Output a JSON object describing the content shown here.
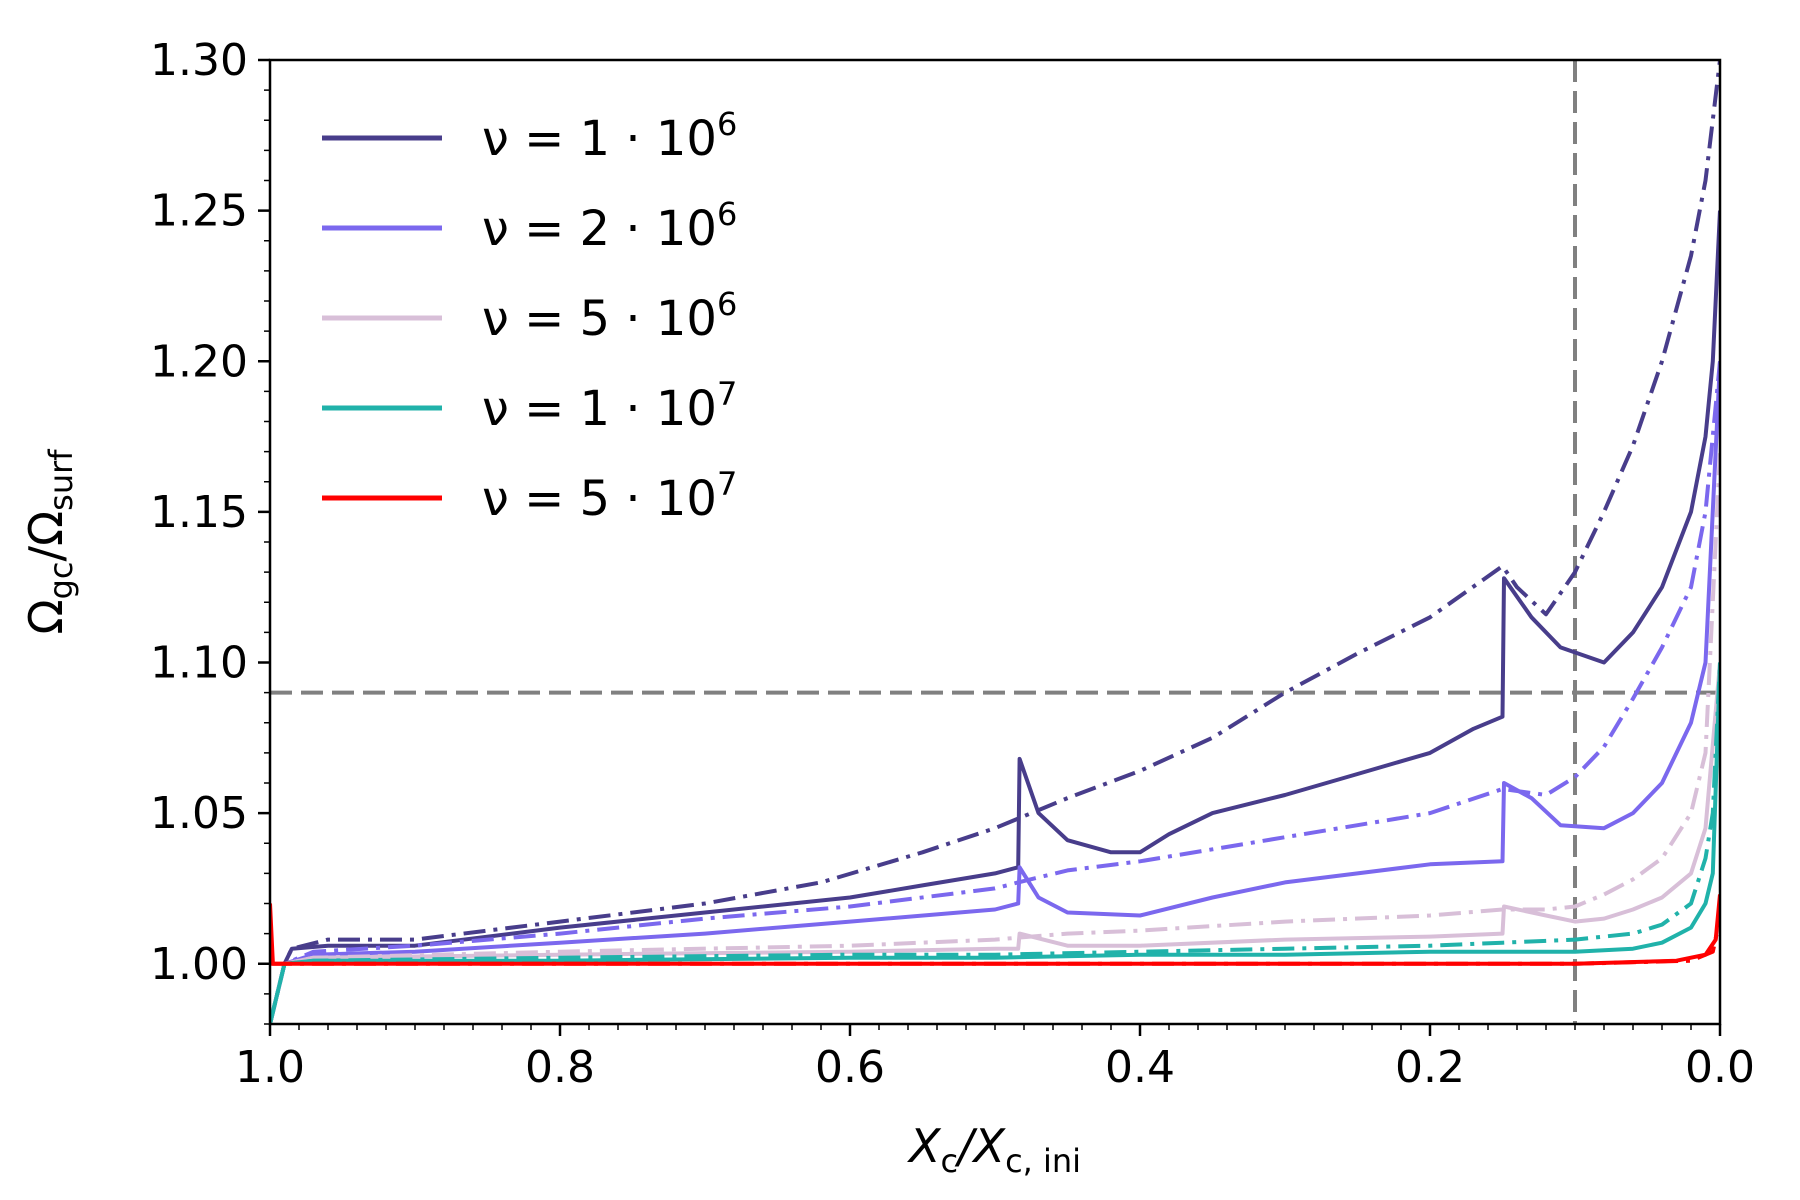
{
  "chart_data": {
    "type": "line",
    "xlabel": {
      "main": "X",
      "sub1": "c",
      "sep": "/X",
      "sub2": "c, ini"
    },
    "ylabel": {
      "main": "Ω",
      "sub1": "gc",
      "sep": "/Ω",
      "sub2": "surf"
    },
    "xlim": [
      1.0,
      0.0
    ],
    "ylim": [
      0.98,
      1.3
    ],
    "xticks": [
      1.0,
      0.8,
      0.6,
      0.4,
      0.2,
      0.0
    ],
    "xtick_labels": [
      "1.0",
      "0.8",
      "0.6",
      "0.4",
      "0.2",
      "0.0"
    ],
    "yticks": [
      1.0,
      1.05,
      1.1,
      1.15,
      1.2,
      1.25,
      1.3
    ],
    "ytick_labels": [
      "1.00",
      "1.05",
      "1.10",
      "1.15",
      "1.20",
      "1.25",
      "1.30"
    ],
    "reference_lines": {
      "horizontal_y": 1.09,
      "vertical_x": 0.1,
      "color": "#808080"
    },
    "legend_position": "upper-left",
    "series": [
      {
        "name": "ν = 1·10^6",
        "label_main": "ν = 1 · 10",
        "label_exp": "6",
        "color": "#483d8b",
        "solid": [
          [
            1.0,
            0.98
          ],
          [
            0.99,
            1.0
          ],
          [
            0.985,
            1.005
          ],
          [
            0.96,
            1.006
          ],
          [
            0.9,
            1.006
          ],
          [
            0.8,
            1.012
          ],
          [
            0.7,
            1.017
          ],
          [
            0.6,
            1.022
          ],
          [
            0.55,
            1.026
          ],
          [
            0.5,
            1.03
          ],
          [
            0.484,
            1.032
          ],
          [
            0.483,
            1.068
          ],
          [
            0.47,
            1.05
          ],
          [
            0.45,
            1.041
          ],
          [
            0.42,
            1.037
          ],
          [
            0.4,
            1.037
          ],
          [
            0.38,
            1.043
          ],
          [
            0.35,
            1.05
          ],
          [
            0.3,
            1.056
          ],
          [
            0.25,
            1.063
          ],
          [
            0.2,
            1.07
          ],
          [
            0.17,
            1.078
          ],
          [
            0.15,
            1.082
          ],
          [
            0.149,
            1.128
          ],
          [
            0.13,
            1.115
          ],
          [
            0.11,
            1.105
          ],
          [
            0.08,
            1.1
          ],
          [
            0.06,
            1.11
          ],
          [
            0.04,
            1.125
          ],
          [
            0.02,
            1.15
          ],
          [
            0.01,
            1.175
          ],
          [
            0.005,
            1.2
          ],
          [
            0.0,
            1.25
          ]
        ],
        "dashdot": [
          [
            1.0,
            0.98
          ],
          [
            0.99,
            1.0
          ],
          [
            0.985,
            1.005
          ],
          [
            0.96,
            1.008
          ],
          [
            0.9,
            1.008
          ],
          [
            0.8,
            1.014
          ],
          [
            0.7,
            1.02
          ],
          [
            0.62,
            1.027
          ],
          [
            0.55,
            1.037
          ],
          [
            0.5,
            1.045
          ],
          [
            0.45,
            1.055
          ],
          [
            0.4,
            1.064
          ],
          [
            0.35,
            1.075
          ],
          [
            0.3,
            1.09
          ],
          [
            0.25,
            1.103
          ],
          [
            0.2,
            1.115
          ],
          [
            0.15,
            1.132
          ],
          [
            0.14,
            1.125
          ],
          [
            0.12,
            1.116
          ],
          [
            0.1,
            1.13
          ],
          [
            0.08,
            1.15
          ],
          [
            0.06,
            1.172
          ],
          [
            0.04,
            1.2
          ],
          [
            0.02,
            1.235
          ],
          [
            0.01,
            1.26
          ],
          [
            0.0,
            1.3
          ]
        ]
      },
      {
        "name": "ν = 2·10^6",
        "label_main": "ν = 2 · 10",
        "label_exp": "6",
        "color": "#7b68ee",
        "solid": [
          [
            1.0,
            0.98
          ],
          [
            0.99,
            1.0
          ],
          [
            0.97,
            1.003
          ],
          [
            0.9,
            1.004
          ],
          [
            0.8,
            1.007
          ],
          [
            0.7,
            1.01
          ],
          [
            0.6,
            1.014
          ],
          [
            0.5,
            1.018
          ],
          [
            0.484,
            1.02
          ],
          [
            0.483,
            1.032
          ],
          [
            0.47,
            1.022
          ],
          [
            0.45,
            1.017
          ],
          [
            0.4,
            1.016
          ],
          [
            0.35,
            1.022
          ],
          [
            0.3,
            1.027
          ],
          [
            0.25,
            1.03
          ],
          [
            0.2,
            1.033
          ],
          [
            0.15,
            1.034
          ],
          [
            0.149,
            1.06
          ],
          [
            0.13,
            1.055
          ],
          [
            0.11,
            1.046
          ],
          [
            0.08,
            1.045
          ],
          [
            0.06,
            1.05
          ],
          [
            0.04,
            1.06
          ],
          [
            0.02,
            1.08
          ],
          [
            0.01,
            1.1
          ],
          [
            0.0,
            1.2
          ]
        ],
        "dashdot": [
          [
            1.0,
            0.98
          ],
          [
            0.99,
            1.0
          ],
          [
            0.97,
            1.004
          ],
          [
            0.9,
            1.006
          ],
          [
            0.8,
            1.01
          ],
          [
            0.7,
            1.015
          ],
          [
            0.6,
            1.019
          ],
          [
            0.5,
            1.025
          ],
          [
            0.484,
            1.027
          ],
          [
            0.45,
            1.031
          ],
          [
            0.4,
            1.034
          ],
          [
            0.35,
            1.038
          ],
          [
            0.3,
            1.042
          ],
          [
            0.25,
            1.046
          ],
          [
            0.2,
            1.05
          ],
          [
            0.15,
            1.058
          ],
          [
            0.12,
            1.056
          ],
          [
            0.1,
            1.062
          ],
          [
            0.08,
            1.072
          ],
          [
            0.06,
            1.088
          ],
          [
            0.04,
            1.105
          ],
          [
            0.02,
            1.125
          ],
          [
            0.01,
            1.15
          ],
          [
            0.0,
            1.2
          ]
        ]
      },
      {
        "name": "ν = 5·10^6",
        "label_main": "ν = 5 · 10",
        "label_exp": "6",
        "color": "#d8bfd8",
        "solid": [
          [
            1.0,
            0.98
          ],
          [
            0.99,
            1.0
          ],
          [
            0.97,
            1.002
          ],
          [
            0.8,
            1.003
          ],
          [
            0.6,
            1.004
          ],
          [
            0.5,
            1.005
          ],
          [
            0.484,
            1.005
          ],
          [
            0.483,
            1.01
          ],
          [
            0.45,
            1.006
          ],
          [
            0.4,
            1.006
          ],
          [
            0.3,
            1.008
          ],
          [
            0.2,
            1.009
          ],
          [
            0.15,
            1.01
          ],
          [
            0.149,
            1.019
          ],
          [
            0.12,
            1.016
          ],
          [
            0.1,
            1.014
          ],
          [
            0.08,
            1.015
          ],
          [
            0.06,
            1.018
          ],
          [
            0.04,
            1.022
          ],
          [
            0.02,
            1.03
          ],
          [
            0.01,
            1.045
          ],
          [
            0.0,
            1.1
          ]
        ],
        "dashdot": [
          [
            1.0,
            0.98
          ],
          [
            0.99,
            1.0
          ],
          [
            0.97,
            1.002
          ],
          [
            0.8,
            1.004
          ],
          [
            0.6,
            1.006
          ],
          [
            0.5,
            1.008
          ],
          [
            0.45,
            1.01
          ],
          [
            0.4,
            1.011
          ],
          [
            0.3,
            1.014
          ],
          [
            0.2,
            1.016
          ],
          [
            0.15,
            1.018
          ],
          [
            0.12,
            1.018
          ],
          [
            0.1,
            1.019
          ],
          [
            0.08,
            1.023
          ],
          [
            0.06,
            1.028
          ],
          [
            0.04,
            1.035
          ],
          [
            0.02,
            1.05
          ],
          [
            0.01,
            1.07
          ],
          [
            0.0,
            1.17
          ]
        ]
      },
      {
        "name": "ν = 1·10^7",
        "label_main": "ν = 1 · 10",
        "label_exp": "7",
        "color": "#20b2aa",
        "solid": [
          [
            1.0,
            0.98
          ],
          [
            0.99,
            1.0
          ],
          [
            0.97,
            1.001
          ],
          [
            0.8,
            1.001
          ],
          [
            0.6,
            1.002
          ],
          [
            0.5,
            1.002
          ],
          [
            0.4,
            1.003
          ],
          [
            0.3,
            1.003
          ],
          [
            0.2,
            1.004
          ],
          [
            0.15,
            1.004
          ],
          [
            0.1,
            1.004
          ],
          [
            0.06,
            1.005
          ],
          [
            0.04,
            1.007
          ],
          [
            0.02,
            1.012
          ],
          [
            0.01,
            1.02
          ],
          [
            0.005,
            1.03
          ],
          [
            0.0,
            1.1
          ]
        ],
        "dashdot": [
          [
            1.0,
            0.98
          ],
          [
            0.99,
            1.0
          ],
          [
            0.97,
            1.001
          ],
          [
            0.8,
            1.002
          ],
          [
            0.6,
            1.003
          ],
          [
            0.5,
            1.003
          ],
          [
            0.4,
            1.004
          ],
          [
            0.3,
            1.005
          ],
          [
            0.2,
            1.006
          ],
          [
            0.15,
            1.007
          ],
          [
            0.1,
            1.008
          ],
          [
            0.06,
            1.01
          ],
          [
            0.04,
            1.013
          ],
          [
            0.02,
            1.02
          ],
          [
            0.01,
            1.035
          ],
          [
            0.005,
            1.05
          ],
          [
            0.0,
            1.1
          ]
        ]
      },
      {
        "name": "ν = 5·10^7",
        "label_main": "ν = 5 · 10",
        "label_exp": "7",
        "color": "#ff0000",
        "solid": [
          [
            1.0,
            1.02
          ],
          [
            0.998,
            1.0
          ],
          [
            0.9,
            1.0
          ],
          [
            0.6,
            1.0
          ],
          [
            0.3,
            1.0
          ],
          [
            0.1,
            1.0
          ],
          [
            0.03,
            1.001
          ],
          [
            0.01,
            1.003
          ],
          [
            0.003,
            1.008
          ],
          [
            0.0,
            1.023
          ]
        ],
        "dashdot": [
          [
            1.0,
            1.0
          ],
          [
            0.5,
            1.0
          ],
          [
            0.1,
            1.0
          ],
          [
            0.02,
            1.001
          ],
          [
            0.005,
            1.004
          ],
          [
            0.0,
            1.015
          ]
        ]
      }
    ]
  }
}
